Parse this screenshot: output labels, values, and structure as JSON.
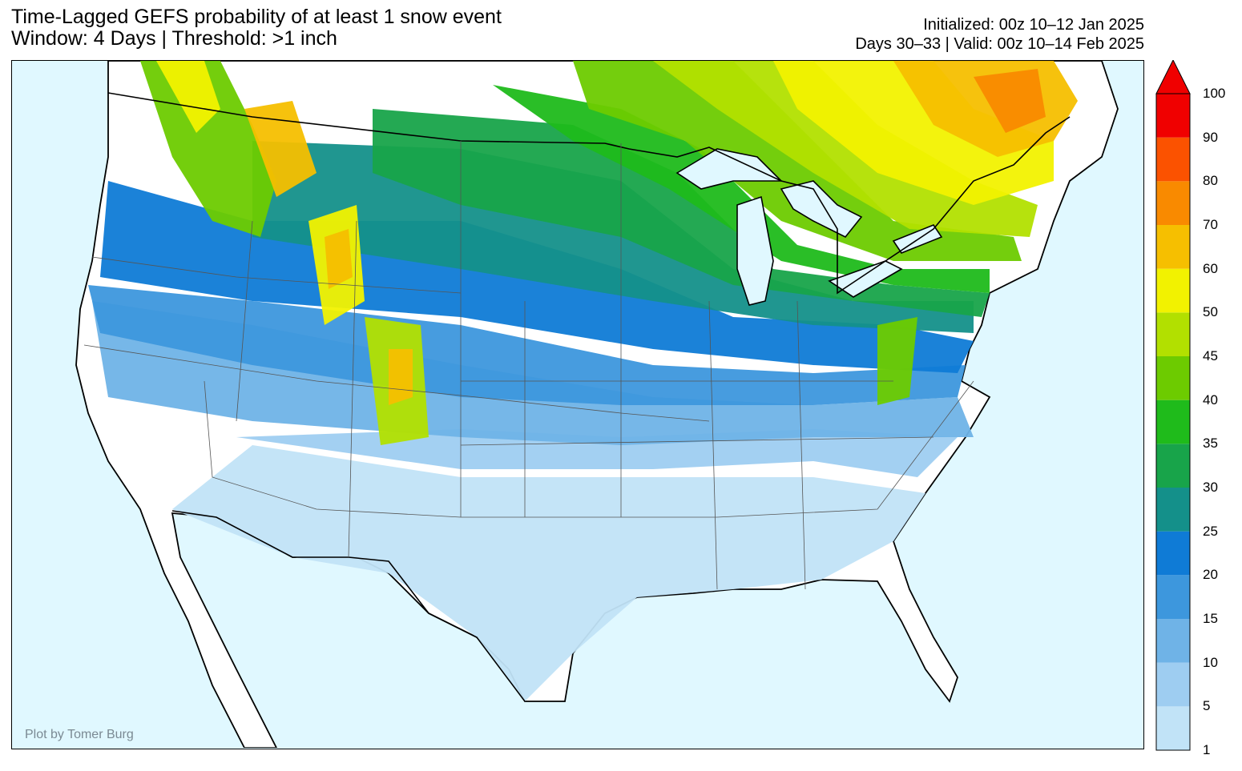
{
  "header": {
    "title_line1": "Time-Lagged GEFS probability of at least 1 snow event",
    "title_line2": "Window: 4 Days | Threshold: >1 inch",
    "init_line": "Initialized: 00z 10–12 Jan 2025",
    "valid_line": "Days 30–33 | Valid: 00z 10–14 Feb 2025"
  },
  "map": {
    "credit": "Plot by Tomer Burg",
    "ocean_color": "#e0f8ff",
    "land_color": "#ffffff"
  },
  "colorbar": {
    "levels": [
      "1",
      "5",
      "10",
      "15",
      "20",
      "25",
      "30",
      "35",
      "40",
      "45",
      "50",
      "60",
      "70",
      "80",
      "90",
      "100"
    ],
    "colors": [
      "#c1e3f7",
      "#9ecdf1",
      "#6fb3e7",
      "#3d97dd",
      "#0f7bd6",
      "#14908a",
      "#18a44a",
      "#1fbb1b",
      "#6dcb00",
      "#b2e000",
      "#f2f200",
      "#f6bf00",
      "#f98a00",
      "#fb5200",
      "#f00000"
    ]
  }
}
